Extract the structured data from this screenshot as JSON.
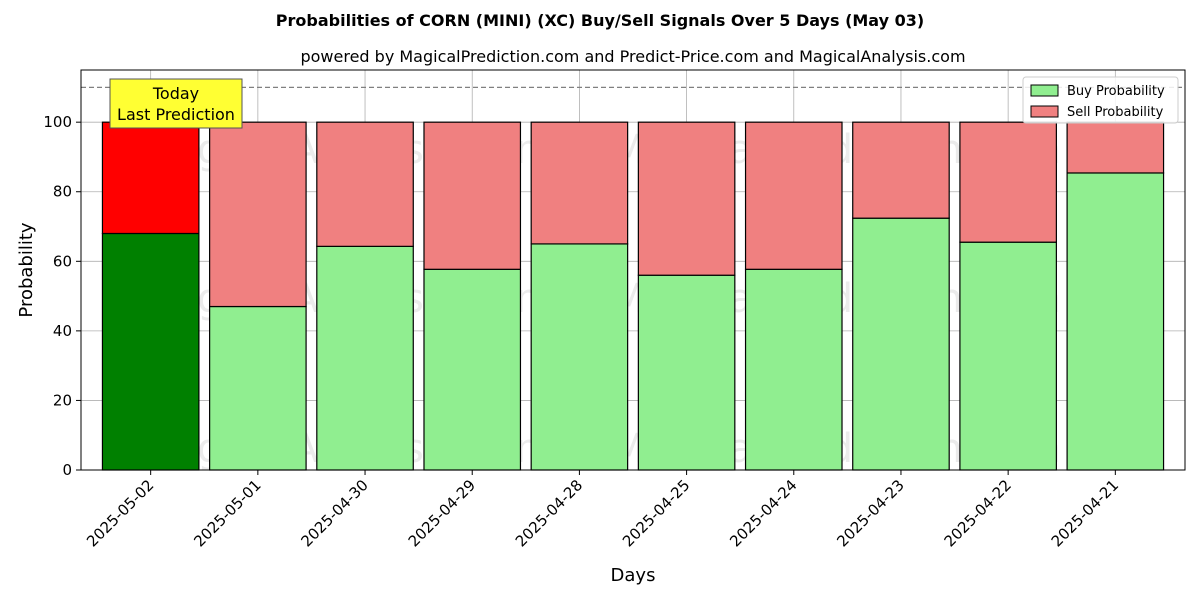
{
  "chart_data": {
    "type": "bar",
    "title": "Probabilities of CORN (MINI) (XC) Buy/Sell Signals Over 5 Days (May 03)",
    "subtitle": "powered by MagicalPrediction.com and Predict-Price.com and MagicalAnalysis.com",
    "xlabel": "Days",
    "ylabel": "Probability",
    "ylim": [
      0,
      115
    ],
    "yticks": [
      0,
      20,
      40,
      60,
      80,
      100
    ],
    "grid": true,
    "stacked": true,
    "categories": [
      "2025-05-02",
      "2025-05-01",
      "2025-04-30",
      "2025-04-29",
      "2025-04-28",
      "2025-04-25",
      "2025-04-24",
      "2025-04-23",
      "2025-04-22",
      "2025-04-21"
    ],
    "series": [
      {
        "name": "Buy Probability",
        "color": "#90ee90",
        "highlight_color": "#008000",
        "values": [
          68,
          47,
          64.3,
          57.7,
          65,
          56,
          57.7,
          72.4,
          65.5,
          85.4
        ]
      },
      {
        "name": "Sell Probability",
        "color": "#f08080",
        "highlight_color": "#ff0000",
        "values": [
          32,
          53,
          35.7,
          42.3,
          35,
          44,
          42.3,
          27.6,
          34.5,
          14.6
        ]
      }
    ],
    "reference_line": 110,
    "legend_position": "top-right",
    "annotation": {
      "lines": [
        "Today",
        "Last Prediction"
      ],
      "color": "#ffff33"
    },
    "watermarks": [
      "MagicalAnalysis.com",
      "MagicalPrediction.com"
    ]
  }
}
